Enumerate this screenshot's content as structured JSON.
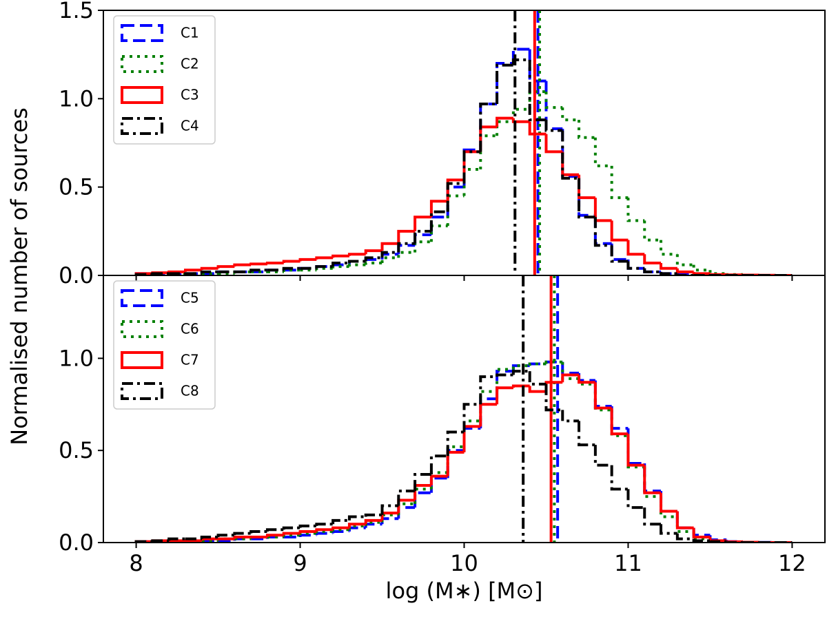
{
  "chart_data": [
    {
      "type": "histogram",
      "ylabel": "Normalised number of sources",
      "bins": [
        8.0,
        8.1,
        8.2,
        8.3,
        8.4,
        8.5,
        8.6,
        8.7,
        8.8,
        8.9,
        9.0,
        9.1,
        9.2,
        9.3,
        9.4,
        9.5,
        9.6,
        9.7,
        9.8,
        9.9,
        10.0,
        10.1,
        10.2,
        10.3,
        10.4,
        10.5,
        10.6,
        10.7,
        10.8,
        10.9,
        11.0,
        11.1,
        11.2,
        11.3,
        11.4,
        11.5,
        11.6,
        11.7,
        11.8,
        11.9,
        12.0
      ],
      "xlim": [
        7.8,
        12.2
      ],
      "xticks": [
        8,
        9,
        10,
        11,
        12
      ],
      "ylim": [
        0,
        1.5
      ],
      "yticks": [
        {
          "value": 0,
          "label": "0.0"
        },
        {
          "value": 0.5,
          "label": "0.5"
        },
        {
          "value": 1,
          "label": "1.0"
        },
        {
          "value": 1.5,
          "label": "1.5"
        }
      ],
      "legend": "upper left",
      "series": [
        {
          "name": "C1",
          "color": "#0000ff",
          "linestyle": "dashed",
          "median": 10.45,
          "values": [
            0.01,
            0.01,
            0.01,
            0.01,
            0.01,
            0.02,
            0.02,
            0.02,
            0.03,
            0.03,
            0.04,
            0.05,
            0.06,
            0.08,
            0.09,
            0.12,
            0.17,
            0.23,
            0.33,
            0.5,
            0.71,
            0.97,
            1.2,
            1.28,
            1.1,
            0.83,
            0.56,
            0.34,
            0.18,
            0.09,
            0.04,
            0.02,
            0.01,
            0.005,
            0,
            0,
            0,
            0,
            0,
            0
          ]
        },
        {
          "name": "C2",
          "color": "#008000",
          "linestyle": "dotted",
          "median": 10.46,
          "values": [
            0.005,
            0.005,
            0.01,
            0.01,
            0.01,
            0.01,
            0.02,
            0.02,
            0.02,
            0.03,
            0.03,
            0.04,
            0.05,
            0.06,
            0.07,
            0.1,
            0.13,
            0.19,
            0.28,
            0.45,
            0.6,
            0.79,
            0.87,
            0.94,
            1.04,
            0.95,
            0.88,
            0.78,
            0.62,
            0.44,
            0.31,
            0.2,
            0.12,
            0.06,
            0.03,
            0.01,
            0.005,
            0,
            0,
            0
          ]
        },
        {
          "name": "C3",
          "color": "#ff0000",
          "linestyle": "solid",
          "median": 10.43,
          "values": [
            0.01,
            0.015,
            0.02,
            0.03,
            0.04,
            0.05,
            0.06,
            0.065,
            0.07,
            0.08,
            0.09,
            0.1,
            0.11,
            0.12,
            0.14,
            0.18,
            0.25,
            0.33,
            0.42,
            0.54,
            0.7,
            0.84,
            0.89,
            0.87,
            0.8,
            0.7,
            0.57,
            0.44,
            0.31,
            0.2,
            0.12,
            0.07,
            0.04,
            0.02,
            0.01,
            0.005,
            0.003,
            0.002,
            0.001,
            0
          ]
        },
        {
          "name": "C4",
          "color": "#000000",
          "linestyle": "dashdot",
          "median": 10.31,
          "values": [
            0.005,
            0.01,
            0.01,
            0.01,
            0.02,
            0.02,
            0.02,
            0.03,
            0.03,
            0.04,
            0.04,
            0.05,
            0.07,
            0.08,
            0.1,
            0.13,
            0.18,
            0.25,
            0.36,
            0.52,
            0.7,
            0.97,
            1.19,
            1.22,
            0.88,
            0.82,
            0.55,
            0.33,
            0.17,
            0.08,
            0.04,
            0.02,
            0.01,
            0,
            0,
            0,
            0,
            0,
            0,
            0
          ]
        }
      ]
    },
    {
      "type": "histogram",
      "xlabel": "log (M∗) [M⊙]",
      "bins": [
        8.0,
        8.1,
        8.2,
        8.3,
        8.4,
        8.5,
        8.6,
        8.7,
        8.8,
        8.9,
        9.0,
        9.1,
        9.2,
        9.3,
        9.4,
        9.5,
        9.6,
        9.7,
        9.8,
        9.9,
        10.0,
        10.1,
        10.2,
        10.3,
        10.4,
        10.5,
        10.6,
        10.7,
        10.8,
        10.9,
        11.0,
        11.1,
        11.2,
        11.3,
        11.4,
        11.5,
        11.6,
        11.7,
        11.8,
        11.9,
        12.0
      ],
      "xlim": [
        7.8,
        12.2
      ],
      "xticks": [
        8,
        9,
        10,
        11,
        12
      ],
      "ylim": [
        0,
        1.45
      ],
      "yticks": [
        {
          "value": 0,
          "label": "0.0"
        },
        {
          "value": 0.5,
          "label": "0.5"
        },
        {
          "value": 1,
          "label": "1.0"
        }
      ],
      "legend": "upper left",
      "series": [
        {
          "name": "C5",
          "color": "#0000ff",
          "linestyle": "dashed",
          "median": 10.57,
          "values": [
            0.005,
            0.005,
            0.005,
            0.01,
            0.01,
            0.01,
            0.02,
            0.02,
            0.03,
            0.03,
            0.04,
            0.05,
            0.06,
            0.08,
            0.1,
            0.13,
            0.19,
            0.27,
            0.35,
            0.5,
            0.62,
            0.78,
            0.93,
            0.96,
            0.97,
            0.98,
            0.92,
            0.88,
            0.74,
            0.62,
            0.43,
            0.28,
            0.17,
            0.08,
            0.04,
            0.015,
            0.005,
            0.002,
            0.001,
            0
          ]
        },
        {
          "name": "C6",
          "color": "#008000",
          "linestyle": "dotted",
          "median": 10.55,
          "values": [
            0.005,
            0.005,
            0.01,
            0.01,
            0.01,
            0.02,
            0.02,
            0.03,
            0.03,
            0.04,
            0.05,
            0.06,
            0.07,
            0.09,
            0.11,
            0.15,
            0.21,
            0.29,
            0.38,
            0.52,
            0.66,
            0.82,
            0.94,
            0.96,
            0.97,
            0.98,
            0.89,
            0.86,
            0.72,
            0.58,
            0.41,
            0.25,
            0.14,
            0.06,
            0.02,
            0.01,
            0.003,
            0,
            0,
            0
          ]
        },
        {
          "name": "C7",
          "color": "#ff0000",
          "linestyle": "solid",
          "median": 10.53,
          "values": [
            0.005,
            0.01,
            0.01,
            0.01,
            0.02,
            0.02,
            0.03,
            0.03,
            0.04,
            0.05,
            0.06,
            0.07,
            0.08,
            0.1,
            0.12,
            0.16,
            0.23,
            0.31,
            0.36,
            0.49,
            0.63,
            0.75,
            0.84,
            0.85,
            0.82,
            0.87,
            0.91,
            0.87,
            0.73,
            0.59,
            0.42,
            0.27,
            0.17,
            0.08,
            0.03,
            0.01,
            0.004,
            0.002,
            0,
            0
          ]
        },
        {
          "name": "C8",
          "color": "#000000",
          "linestyle": "dashdot",
          "median": 10.36,
          "values": [
            0.005,
            0.01,
            0.02,
            0.02,
            0.03,
            0.04,
            0.05,
            0.06,
            0.07,
            0.08,
            0.09,
            0.1,
            0.12,
            0.14,
            0.15,
            0.2,
            0.28,
            0.37,
            0.47,
            0.6,
            0.75,
            0.9,
            0.91,
            0.93,
            0.86,
            0.72,
            0.66,
            0.53,
            0.42,
            0.29,
            0.19,
            0.1,
            0.05,
            0.02,
            0.01,
            0.005,
            0,
            0,
            0,
            0
          ]
        }
      ]
    }
  ]
}
